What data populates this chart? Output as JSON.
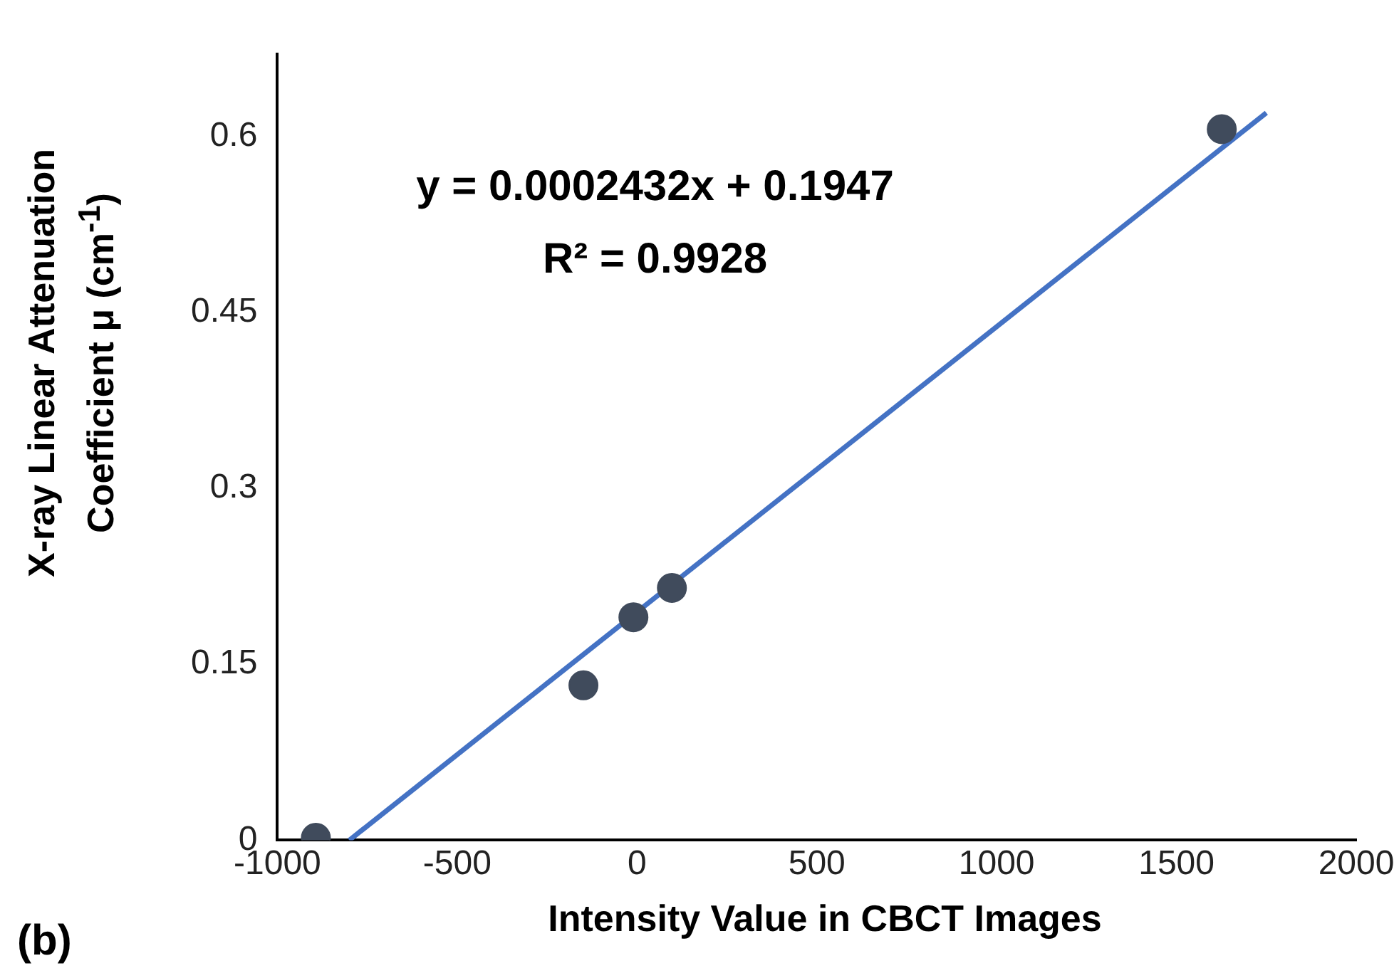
{
  "chart_data": {
    "type": "scatter",
    "xlabel": "Intensity Value in CBCT Images",
    "ylabel": "X-ray Linear Attenuation Coefficient μ (cm$^{-1}$)",
    "series": [
      {
        "type": "scatter",
        "color": "#404b5c",
        "x": [
          -893,
          -149,
          -10,
          97,
          1626
        ],
        "values": [
          0.002,
          0.132,
          0.19,
          0.215,
          0.606
        ],
        "marker": "circle"
      },
      {
        "type": "line",
        "color": "#4472c4",
        "x": [
          -800,
          1750
        ],
        "values": [
          0,
          0.62
        ],
        "marker": "none",
        "line_style": "solid"
      }
    ],
    "xlim": [
      -1000,
      2000
    ],
    "xticks": [
      -1000,
      -500,
      0,
      500,
      1000,
      1500,
      2000
    ],
    "ylim": [
      0,
      0.67
    ],
    "yticks": [
      0,
      0.15,
      0.3,
      0.45,
      0.6
    ],
    "grid": false,
    "legend": false,
    "annotations": [
      "y = 0.0002432x + 0.1947",
      "R² = 0.9928",
      "(b)"
    ]
  }
}
